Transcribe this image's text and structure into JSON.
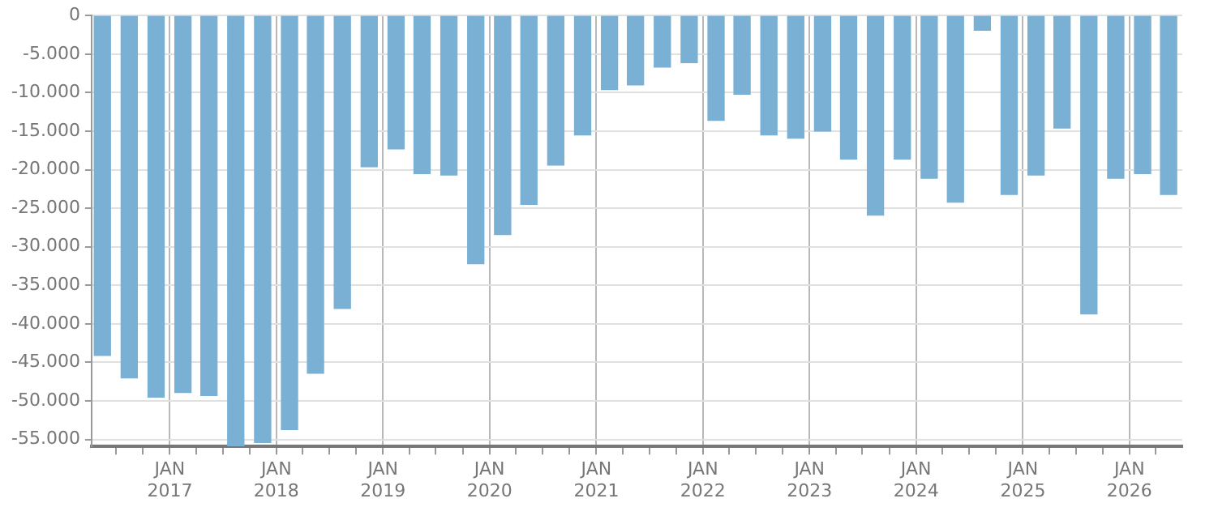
{
  "chart_data": {
    "type": "bar",
    "color": "#7ab0d4",
    "grid": true,
    "legend": false,
    "x": [
      "2016-05-15",
      "2016-08-15",
      "2016-11-15",
      "2017-02-15",
      "2017-05-15",
      "2017-08-15",
      "2017-11-15",
      "2018-02-15",
      "2018-05-15",
      "2018-08-15",
      "2018-11-15",
      "2019-02-15",
      "2019-05-15",
      "2019-08-15",
      "2019-11-15",
      "2020-02-15",
      "2020-05-15",
      "2020-08-15",
      "2020-11-15",
      "2021-02-15",
      "2021-05-15",
      "2021-08-15",
      "2021-11-15",
      "2022-02-15",
      "2022-05-15",
      "2022-08-15",
      "2022-11-15",
      "2023-02-15",
      "2023-05-15",
      "2023-08-15",
      "2023-11-15",
      "2024-02-15",
      "2024-05-15",
      "2024-08-15",
      "2024-11-15",
      "2025-02-15",
      "2025-05-15",
      "2025-08-15",
      "2025-11-15",
      "2026-02-15",
      "2026-05-15"
    ],
    "values": [
      -44100,
      -47000,
      -49500,
      -48900,
      -49300,
      -55800,
      -55400,
      -53700,
      -46400,
      -38000,
      -19600,
      -17300,
      -20500,
      -20700,
      -32200,
      -28400,
      -24500,
      -19400,
      -15500,
      -9600,
      -9000,
      -6700,
      -6100,
      -13600,
      -10200,
      -15500,
      -15900,
      -15000,
      -18600,
      -25900,
      -18600,
      -21100,
      -24200,
      -1900,
      -23200,
      -20700,
      -14600,
      -38700,
      -21100,
      -20500,
      -23200
    ],
    "ylim": [
      -55900,
      0
    ],
    "yticks": [
      {
        "value": -55000,
        "label": "-55.000"
      },
      {
        "value": -50000,
        "label": "-50.000"
      },
      {
        "value": -45000,
        "label": "-45.000"
      },
      {
        "value": -40000,
        "label": "-40.000"
      },
      {
        "value": -35000,
        "label": "-35.000"
      },
      {
        "value": -30000,
        "label": "-30.000"
      },
      {
        "value": -25000,
        "label": "-25.000"
      },
      {
        "value": -20000,
        "label": "-20.000"
      },
      {
        "value": -15000,
        "label": "-15.000"
      },
      {
        "value": -10000,
        "label": "-10.000"
      },
      {
        "value": -5000,
        "label": "-5.000"
      },
      0
    ],
    "xlim": [
      "2016-04-08",
      "2026-07-01"
    ],
    "xticks": [
      {
        "value": "2016-07-01",
        "label": null
      },
      {
        "value": "2016-10-01",
        "label": null
      },
      {
        "value": "2017-01-01",
        "label": "JAN 2017"
      },
      {
        "value": "2017-04-01",
        "label": null
      },
      {
        "value": "2017-07-01",
        "label": null
      },
      {
        "value": "2017-10-01",
        "label": null
      },
      {
        "value": "2018-01-01",
        "label": "JAN 2018"
      },
      {
        "value": "2018-04-01",
        "label": null
      },
      {
        "value": "2018-07-01",
        "label": null
      },
      {
        "value": "2018-10-01",
        "label": null
      },
      {
        "value": "2019-01-01",
        "label": "JAN 2019"
      },
      {
        "value": "2019-04-01",
        "label": null
      },
      {
        "value": "2019-07-01",
        "label": null
      },
      {
        "value": "2019-10-01",
        "label": null
      },
      {
        "value": "2020-01-01",
        "label": "JAN 2020"
      },
      {
        "value": "2020-04-01",
        "label": null
      },
      {
        "value": "2020-07-01",
        "label": null
      },
      {
        "value": "2020-10-01",
        "label": null
      },
      {
        "value": "2021-01-01",
        "label": "JAN 2021"
      },
      {
        "value": "2021-04-01",
        "label": null
      },
      {
        "value": "2021-07-01",
        "label": null
      },
      {
        "value": "2021-10-01",
        "label": null
      },
      {
        "value": "2022-01-01",
        "label": "JAN 2022"
      },
      {
        "value": "2022-04-01",
        "label": null
      },
      {
        "value": "2022-07-01",
        "label": null
      },
      {
        "value": "2022-10-01",
        "label": null
      },
      {
        "value": "2023-01-01",
        "label": "JAN 2023"
      },
      {
        "value": "2023-04-01",
        "label": null
      },
      {
        "value": "2023-07-01",
        "label": null
      },
      {
        "value": "2023-10-01",
        "label": null
      },
      {
        "value": "2024-01-01",
        "label": "JAN 2024"
      },
      {
        "value": "2024-04-01",
        "label": null
      },
      {
        "value": "2024-07-01",
        "label": null
      },
      {
        "value": "2024-10-01",
        "label": null
      },
      {
        "value": "2025-01-01",
        "label": "JAN 2025"
      },
      {
        "value": "2025-04-01",
        "label": null
      },
      {
        "value": "2025-07-01",
        "label": null
      },
      {
        "value": "2025-10-01",
        "label": null
      },
      {
        "value": "2026-01-01",
        "label": "JAN 2026"
      },
      {
        "value": "2026-04-01",
        "label": null
      }
    ]
  }
}
